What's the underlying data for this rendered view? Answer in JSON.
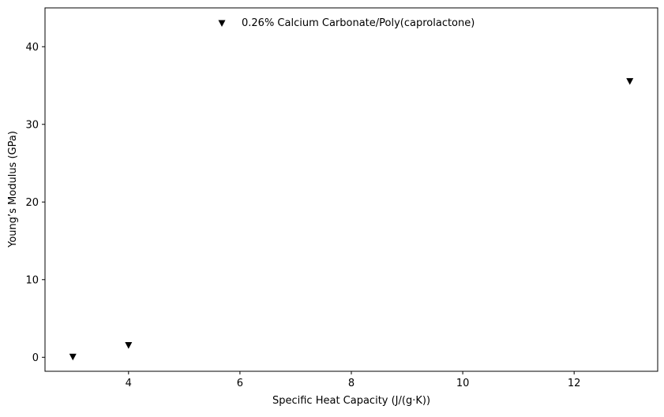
{
  "chart_data": {
    "type": "scatter",
    "title": "",
    "xlabel": "Specific Heat Capacity (J/(g·K))",
    "ylabel": "Young’s Modulus (GPa)",
    "xlim": [
      2.5,
      13.5
    ],
    "ylim": [
      -1.8,
      45
    ],
    "x_ticks": [
      4,
      6,
      8,
      10,
      12
    ],
    "y_ticks": [
      0,
      10,
      20,
      30,
      40
    ],
    "grid": false,
    "legend": {
      "placement": "top-center",
      "entries": [
        "0.26% Calcium Carbonate/Poly(caprolactone)"
      ]
    },
    "series": [
      {
        "name": "0.26% Calcium Carbonate/Poly(caprolactone)",
        "marker": "triangle-down",
        "color": "#000000",
        "x": [
          3,
          4,
          13
        ],
        "y": [
          0,
          1.5,
          35.5
        ]
      }
    ]
  }
}
